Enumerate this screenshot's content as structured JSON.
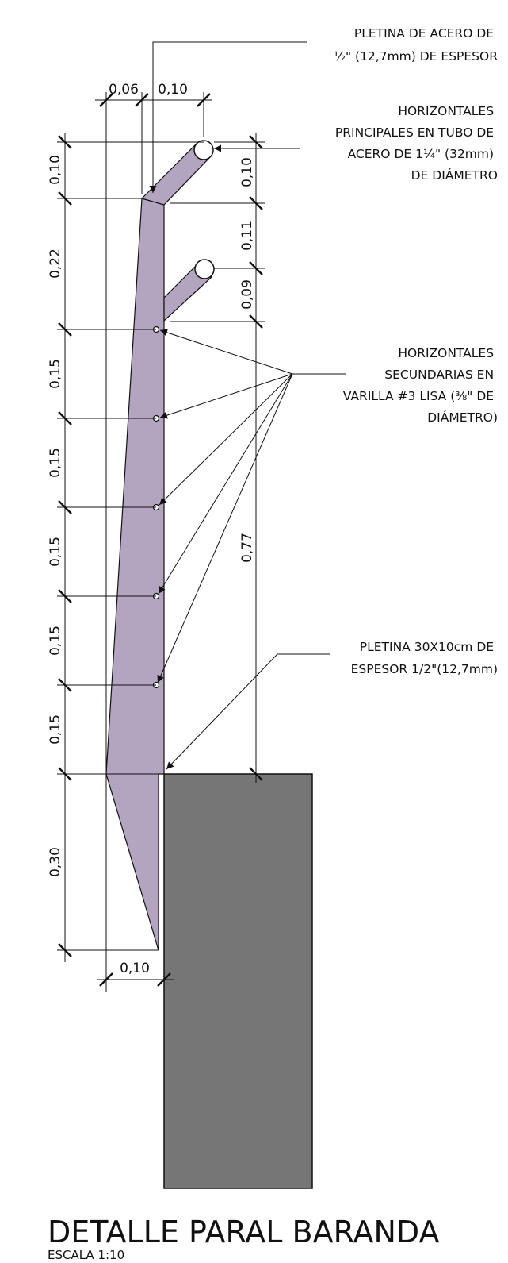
{
  "colors": {
    "steel": "#b3a4c0",
    "concrete": "#767676",
    "ink": "#111111"
  },
  "annotations": {
    "plate_top": [
      "PLETINA DE ACERO DE",
      "½\" (12,7mm) DE ESPESOR"
    ],
    "main_rails": [
      "HORIZONTALES",
      "PRINCIPALES EN TUBO DE",
      "ACERO DE 1¼\" (32mm)",
      "DE DIÁMETRO"
    ],
    "secondary_rails": [
      "HORIZONTALES",
      "SECUNDARIAS EN",
      "VARILLA #3 LISA (⅜\" DE",
      "DIÁMETRO)"
    ],
    "base_plate": [
      "PLETINA 30X10cm DE",
      "ESPESOR 1/2\"(12,7mm)"
    ]
  },
  "dimensions": {
    "top_left_width": "0,06",
    "top_right_width": "0,10",
    "left": [
      "0,10",
      "0,22",
      "0,15",
      "0,15",
      "0,15",
      "0,15",
      "0,15",
      "0,30"
    ],
    "right": [
      "0,10",
      "0,11",
      "0,09"
    ],
    "total_height": "0,77",
    "bottom_width": "0,10"
  },
  "title": "DETALLE PARAL BARANDA",
  "scale": "ESCALA 1:10"
}
